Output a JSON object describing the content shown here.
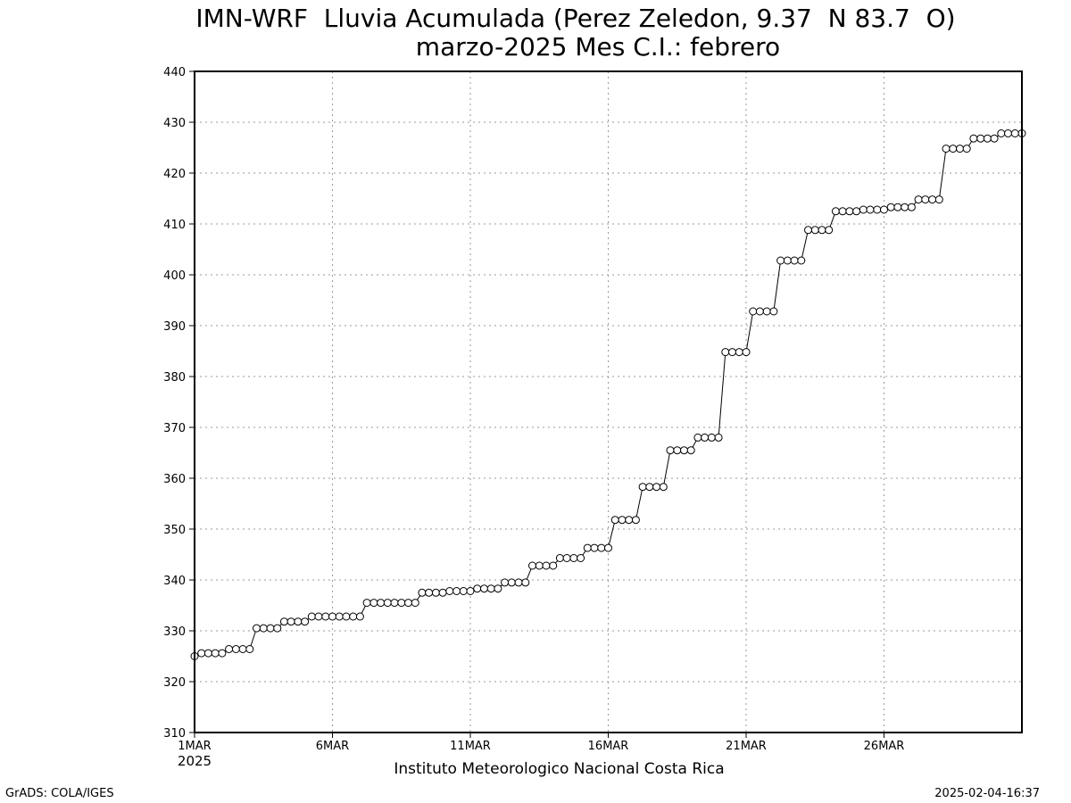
{
  "title_line1": "IMN-WRF  Lluvia Acumulada (Perez Zeledon, 9.37  N 83.7  O)",
  "title_line2": "marzo-2025 Mes C.I.: febrero",
  "credit": "Instituto Meteorologico Nacional Costa Rica",
  "footer_left": "GrADS: COLA/IGES",
  "footer_right": "2025-02-04-16:37",
  "colors": {
    "line": "#000000",
    "marker_fill": "#ffffff",
    "grid": "#9a9a9a",
    "background": "#ffffff"
  },
  "chart_data": {
    "type": "line",
    "title": "IMN-WRF  Lluvia Acumulada (Perez Zeledon, 9.37  N 83.7  O)",
    "subtitle": "marzo-2025 Mes C.I.: febrero",
    "xlabel": "",
    "ylabel": "",
    "ylim": [
      310,
      440
    ],
    "yticks": [
      310,
      320,
      330,
      340,
      350,
      360,
      370,
      380,
      390,
      400,
      410,
      420,
      430,
      440
    ],
    "xlim_days": [
      1,
      31
    ],
    "xticks": [
      {
        "day": 1,
        "label": "1MAR",
        "sublabel": "2025"
      },
      {
        "day": 6,
        "label": "6MAR",
        "sublabel": ""
      },
      {
        "day": 11,
        "label": "11MAR",
        "sublabel": ""
      },
      {
        "day": 16,
        "label": "16MAR",
        "sublabel": ""
      },
      {
        "day": 21,
        "label": "21MAR",
        "sublabel": ""
      },
      {
        "day": 26,
        "label": "26MAR",
        "sublabel": ""
      }
    ],
    "grid": true,
    "marker": "open-circle",
    "points_per_day": 4,
    "daily_values": [
      [
        325.0,
        325.6,
        325.6,
        325.6
      ],
      [
        325.6,
        326.4,
        326.4,
        326.4
      ],
      [
        326.4,
        330.5,
        330.5,
        330.5
      ],
      [
        330.5,
        331.8,
        331.8,
        331.8
      ],
      [
        331.8,
        332.8,
        332.8,
        332.8
      ],
      [
        332.8,
        332.8,
        332.8,
        332.8
      ],
      [
        332.8,
        335.5,
        335.5,
        335.5
      ],
      [
        335.5,
        335.5,
        335.5,
        335.5
      ],
      [
        335.5,
        337.5,
        337.5,
        337.5
      ],
      [
        337.5,
        337.8,
        337.8,
        337.8
      ],
      [
        337.8,
        338.3,
        338.3,
        338.3
      ],
      [
        338.3,
        339.5,
        339.5,
        339.5
      ],
      [
        339.5,
        342.8,
        342.8,
        342.8
      ],
      [
        342.8,
        344.3,
        344.3,
        344.3
      ],
      [
        344.3,
        346.3,
        346.3,
        346.3
      ],
      [
        346.3,
        351.8,
        351.8,
        351.8
      ],
      [
        351.8,
        358.3,
        358.3,
        358.3
      ],
      [
        358.3,
        365.5,
        365.5,
        365.5
      ],
      [
        365.5,
        368.0,
        368.0,
        368.0
      ],
      [
        368.0,
        384.8,
        384.8,
        384.8
      ],
      [
        384.8,
        392.8,
        392.8,
        392.8
      ],
      [
        392.8,
        402.8,
        402.8,
        402.8
      ],
      [
        402.8,
        408.8,
        408.8,
        408.8
      ],
      [
        408.8,
        412.5,
        412.5,
        412.5
      ],
      [
        412.5,
        412.8,
        412.8,
        412.8
      ],
      [
        412.8,
        413.3,
        413.3,
        413.3
      ],
      [
        413.3,
        414.8,
        414.8,
        414.8
      ],
      [
        414.8,
        424.8,
        424.8,
        424.8
      ],
      [
        424.8,
        426.8,
        426.8,
        426.8
      ],
      [
        426.8,
        427.8,
        427.8,
        427.8
      ]
    ],
    "final_value": 427.8
  }
}
